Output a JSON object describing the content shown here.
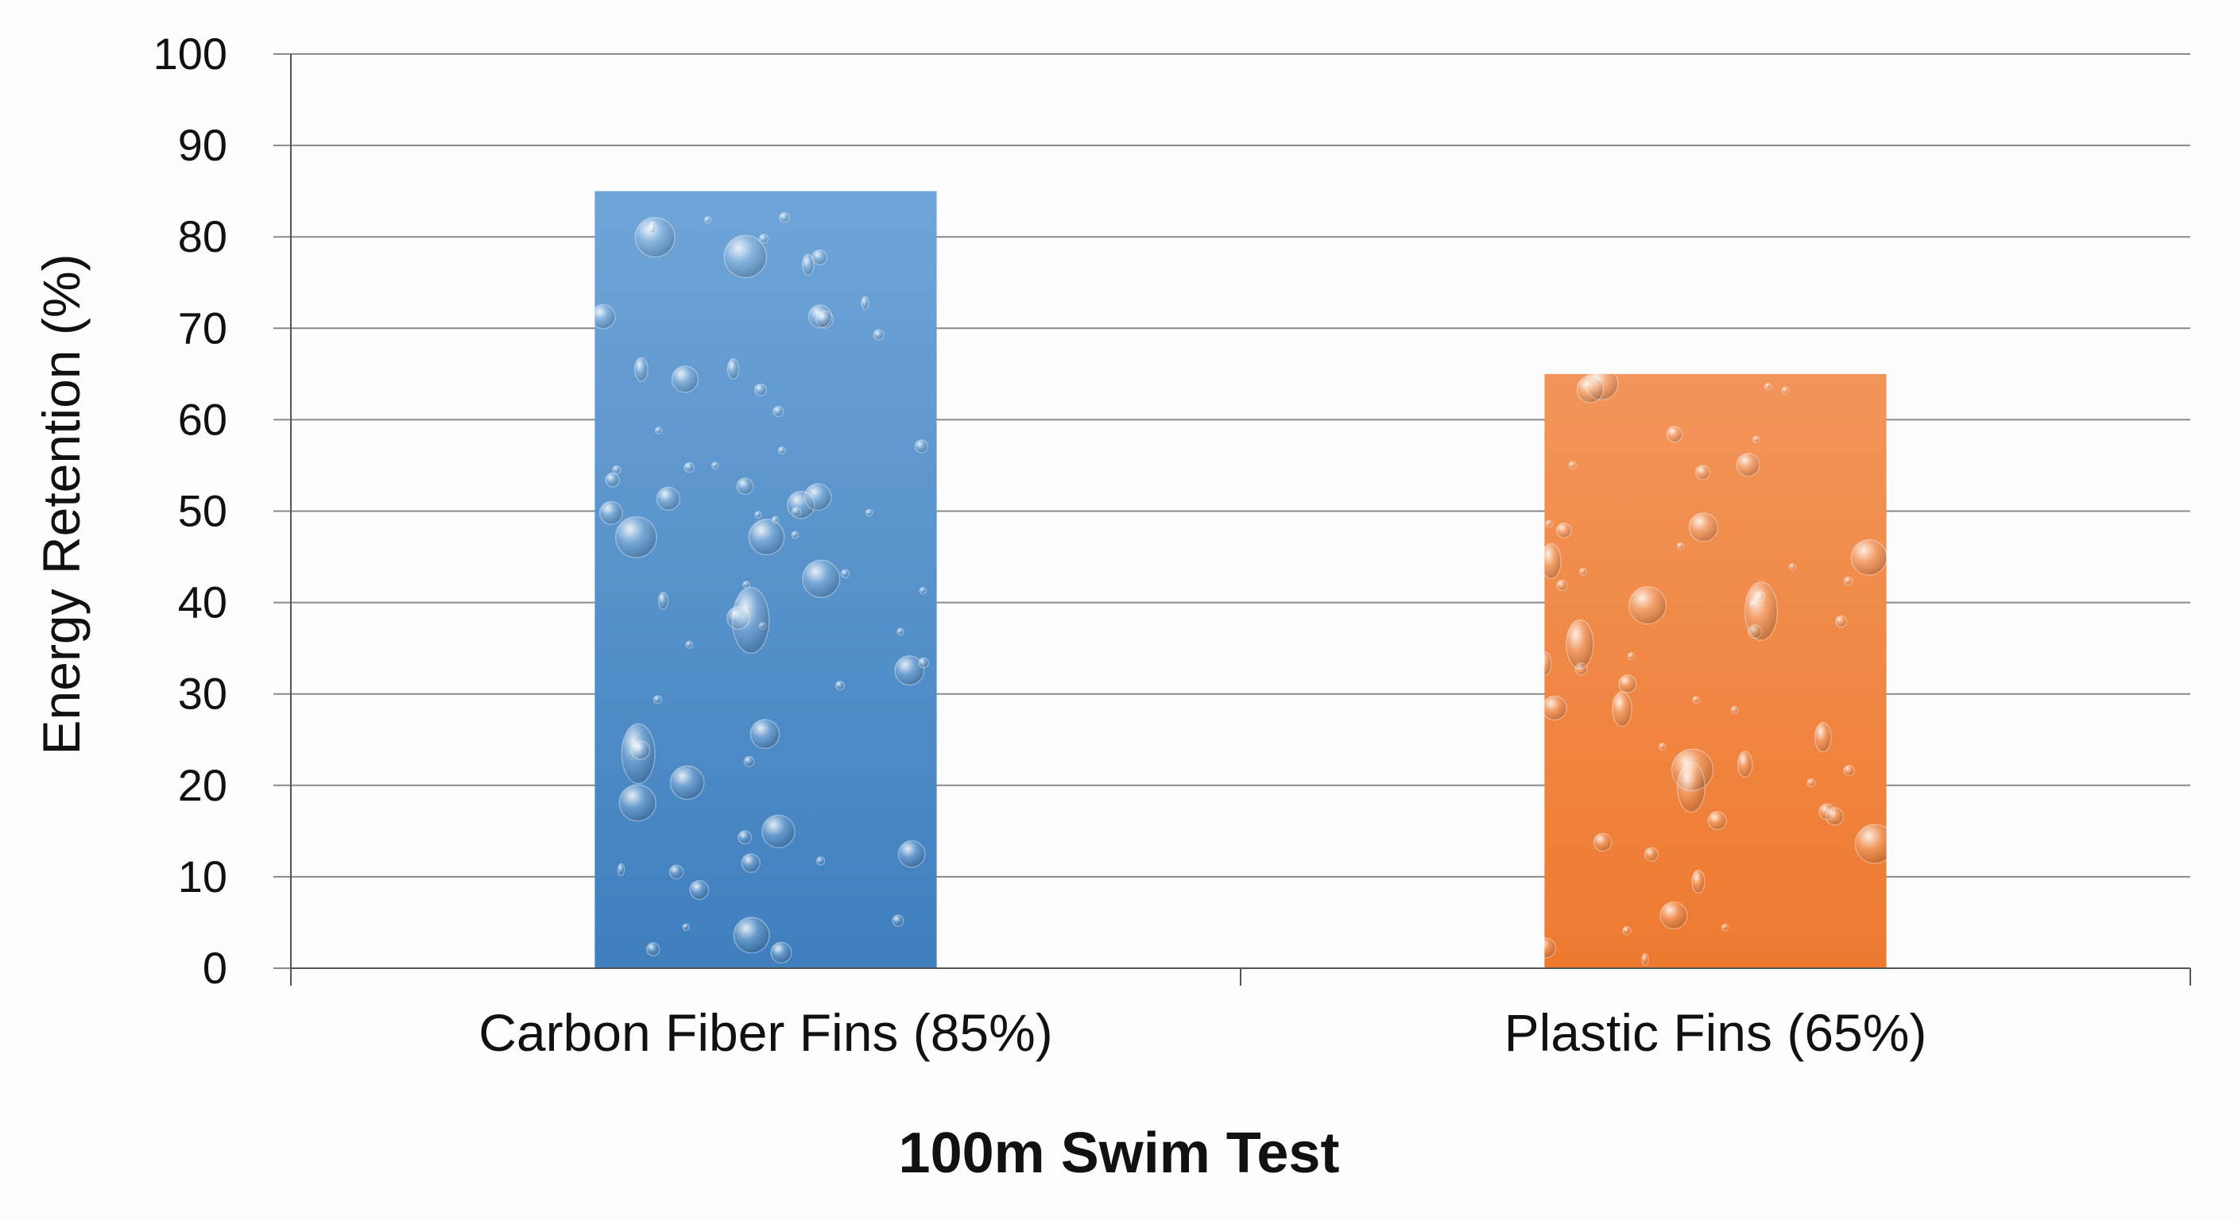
{
  "chart_data": {
    "type": "bar",
    "categories": [
      "Carbon Fiber Fins (85%)",
      "Plastic Fins (65%)"
    ],
    "values": [
      85,
      65
    ],
    "xlabel": "100m Swim Test",
    "ylabel": "Energy Retention (%)",
    "ylim": [
      0,
      100
    ],
    "yticks": [
      "0",
      "10",
      "20",
      "30",
      "40",
      "50",
      "60",
      "70",
      "80",
      "90",
      "100"
    ],
    "grid": true,
    "bar_colors": [
      "#4a8bc8",
      "#f07d35"
    ],
    "bar_fill_style": "water-droplet texture",
    "colors": {
      "background": "#fdfdfd",
      "grid": "#8a8a8a",
      "axis": "#555555",
      "text": "#111111"
    }
  }
}
